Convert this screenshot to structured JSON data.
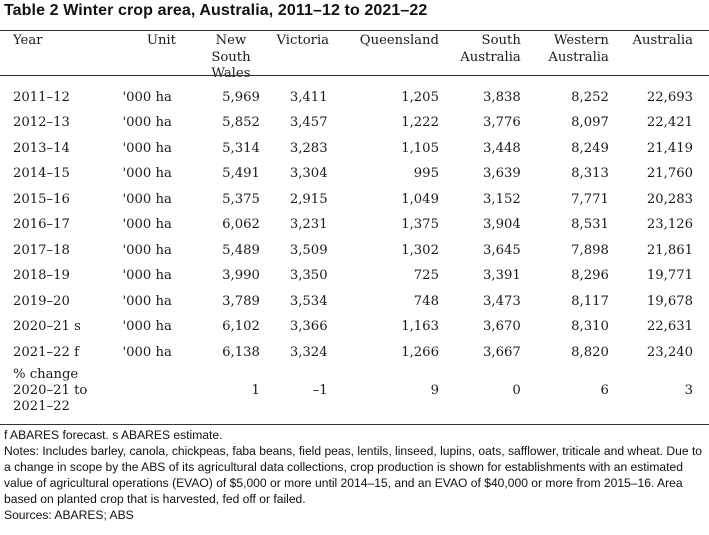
{
  "title": "Table 2 Winter crop area, Australia, 2011–12 to 2021–22",
  "columns": [
    "Year",
    "Unit",
    "New South Wales",
    "Victoria",
    "Queensland",
    "South Australia",
    "Western Australia",
    "Australia"
  ],
  "rows": [
    {
      "year": "2011–12",
      "unit": "'000 ha",
      "values": [
        "5,969",
        "3,411",
        "1,205",
        "3,838",
        "8,252",
        "22,693"
      ]
    },
    {
      "year": "2012–13",
      "unit": "'000 ha",
      "values": [
        "5,852",
        "3,457",
        "1,222",
        "3,776",
        "8,097",
        "22,421"
      ]
    },
    {
      "year": "2013–14",
      "unit": "'000 ha",
      "values": [
        "5,314",
        "3,283",
        "1,105",
        "3,448",
        "8,249",
        "21,419"
      ]
    },
    {
      "year": "2014–15",
      "unit": "'000 ha",
      "values": [
        "5,491",
        "3,304",
        "995",
        "3,639",
        "8,313",
        "21,760"
      ]
    },
    {
      "year": "2015–16",
      "unit": "'000 ha",
      "values": [
        "5,375",
        "2,915",
        "1,049",
        "3,152",
        "7,771",
        "20,283"
      ]
    },
    {
      "year": "2016–17",
      "unit": "'000 ha",
      "values": [
        "6,062",
        "3,231",
        "1,375",
        "3,904",
        "8,531",
        "23,126"
      ]
    },
    {
      "year": "2017–18",
      "unit": "'000 ha",
      "values": [
        "5,489",
        "3,509",
        "1,302",
        "3,645",
        "7,898",
        "21,861"
      ]
    },
    {
      "year": "2018–19",
      "unit": "'000 ha",
      "values": [
        "3,990",
        "3,350",
        "725",
        "3,391",
        "8,296",
        "19,771"
      ]
    },
    {
      "year": "2019–20",
      "unit": "'000 ha",
      "values": [
        "3,789",
        "3,534",
        "748",
        "3,473",
        "8,117",
        "19,678"
      ]
    },
    {
      "year": "2020–21 s",
      "unit": "'000 ha",
      "values": [
        "6,102",
        "3,366",
        "1,163",
        "3,670",
        "8,310",
        "22,631"
      ]
    },
    {
      "year": "2021–22 f",
      "unit": "'000 ha",
      "values": [
        "6,138",
        "3,324",
        "1,266",
        "3,667",
        "8,820",
        "23,240"
      ]
    }
  ],
  "change_row": {
    "label_lines": [
      "% change",
      "2020–21 to",
      "2021–22"
    ],
    "values": [
      "1",
      "–1",
      "9",
      "0",
      "6",
      "3"
    ]
  },
  "notes": [
    "f ABARES forecast. s ABARES estimate.",
    "Notes: Includes barley, canola, chickpeas, faba beans, field peas, lentils, linseed, lupins, oats, safflower, triticale and wheat. Due to a change in scope by the ABS of its agricultural data collections, crop production is shown for establishments with an estimated value of agricultural operations (EVAO) of $5,000 or more until 2014–15, and an EVAO of $40,000 or more from 2015–16. Area based on planted crop that is harvested, fed off or failed.",
    "Sources: ABARES; ABS"
  ]
}
